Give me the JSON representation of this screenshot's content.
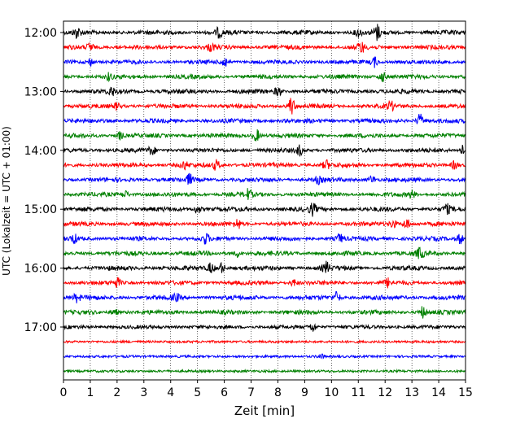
{
  "chart_data": {
    "type": "line",
    "xlabel": "Zeit  [min]",
    "ylabel": "UTC (Lokalzeit = UTC + 01:00)",
    "xlim": [
      0,
      15
    ],
    "x_ticks": [
      "0",
      "1",
      "2",
      "3",
      "4",
      "5",
      "6",
      "7",
      "8",
      "9",
      "10",
      "11",
      "12",
      "13",
      "14",
      "15"
    ],
    "y_ticks": [
      {
        "label": "12:00",
        "row": 0
      },
      {
        "label": "13:00",
        "row": 4
      },
      {
        "label": "14:00",
        "row": 8
      },
      {
        "label": "15:00",
        "row": 12
      },
      {
        "label": "16:00",
        "row": 16
      },
      {
        "label": "17:00",
        "row": 20
      }
    ],
    "grid": "vertical-dotted",
    "row_interval_minutes": 15,
    "row_colors": [
      "#000000",
      "#ff0000",
      "#0000ff",
      "#008000"
    ],
    "traces": [
      {
        "start": "12:00",
        "level": 0.55,
        "events": [
          [
            0.5,
            0.9
          ],
          [
            5.8,
            0.8
          ],
          [
            11.0,
            0.7
          ],
          [
            11.7,
            1.4
          ]
        ]
      },
      {
        "start": "12:15",
        "level": 0.5,
        "events": [
          [
            1.0,
            0.8
          ],
          [
            5.5,
            0.6
          ],
          [
            11.1,
            1.0
          ]
        ]
      },
      {
        "start": "12:30",
        "level": 0.45,
        "events": [
          [
            1.0,
            0.7
          ],
          [
            6.0,
            1.0
          ],
          [
            11.6,
            0.9
          ]
        ]
      },
      {
        "start": "12:45",
        "level": 0.5,
        "events": [
          [
            1.7,
            0.6
          ],
          [
            11.9,
            0.9
          ]
        ]
      },
      {
        "start": "13:00",
        "level": 0.55,
        "events": [
          [
            1.8,
            0.7
          ],
          [
            8.0,
            0.8
          ]
        ]
      },
      {
        "start": "13:15",
        "level": 0.5,
        "events": [
          [
            2.0,
            0.6
          ],
          [
            8.5,
            1.6
          ],
          [
            12.2,
            0.8
          ]
        ]
      },
      {
        "start": "13:30",
        "level": 0.5,
        "events": [
          [
            13.3,
            1.2
          ]
        ]
      },
      {
        "start": "13:45",
        "level": 0.5,
        "events": [
          [
            2.1,
            0.7
          ],
          [
            7.2,
            1.1
          ]
        ]
      },
      {
        "start": "14:00",
        "level": 0.5,
        "events": [
          [
            3.3,
            0.8
          ],
          [
            8.8,
            0.9
          ],
          [
            14.9,
            0.9
          ]
        ]
      },
      {
        "start": "14:15",
        "level": 0.5,
        "events": [
          [
            4.5,
            0.7
          ],
          [
            5.7,
            0.9
          ],
          [
            9.8,
            0.8
          ],
          [
            14.6,
            0.8
          ]
        ]
      },
      {
        "start": "14:30",
        "level": 0.5,
        "events": [
          [
            4.7,
            0.9
          ],
          [
            9.5,
            0.6
          ],
          [
            11.5,
            0.7
          ]
        ]
      },
      {
        "start": "14:45",
        "level": 0.5,
        "events": [
          [
            2.3,
            0.6
          ],
          [
            6.9,
            0.9
          ],
          [
            13.0,
            0.7
          ]
        ]
      },
      {
        "start": "15:00",
        "level": 0.55,
        "events": [
          [
            5.0,
            0.8
          ],
          [
            9.3,
            1.0
          ],
          [
            14.3,
            0.8
          ]
        ]
      },
      {
        "start": "15:15",
        "level": 0.5,
        "events": [
          [
            6.5,
            0.9
          ],
          [
            12.3,
            0.7
          ],
          [
            12.8,
            1.0
          ]
        ]
      },
      {
        "start": "15:30",
        "level": 0.5,
        "events": [
          [
            0.4,
            0.7
          ],
          [
            5.3,
            0.9
          ],
          [
            10.3,
            0.8
          ],
          [
            14.8,
            0.9
          ]
        ]
      },
      {
        "start": "15:45",
        "level": 0.55,
        "events": [
          [
            13.3,
            1.0
          ],
          [
            6.5,
            0.6
          ]
        ]
      },
      {
        "start": "16:00",
        "level": 0.55,
        "events": [
          [
            5.5,
            0.9
          ],
          [
            5.9,
            0.9
          ],
          [
            9.8,
            1.0
          ]
        ]
      },
      {
        "start": "16:15",
        "level": 0.5,
        "events": [
          [
            2.0,
            0.8
          ],
          [
            8.6,
            0.6
          ],
          [
            12.1,
            0.7
          ]
        ]
      },
      {
        "start": "16:30",
        "level": 0.55,
        "events": [
          [
            0.5,
            0.7
          ],
          [
            4.2,
            0.6
          ],
          [
            10.2,
            1.0
          ]
        ]
      },
      {
        "start": "16:45",
        "level": 0.5,
        "events": [
          [
            1.9,
            0.6
          ],
          [
            13.4,
            1.0
          ]
        ]
      },
      {
        "start": "17:00",
        "level": 0.35,
        "events": [
          [
            9.3,
            0.8
          ]
        ]
      },
      {
        "start": "17:15",
        "level": 0.08,
        "events": []
      },
      {
        "start": "17:30",
        "level": 0.08,
        "events": [
          [
            9.6,
            0.4
          ]
        ]
      },
      {
        "start": "17:45",
        "level": 0.08,
        "events": []
      }
    ]
  }
}
